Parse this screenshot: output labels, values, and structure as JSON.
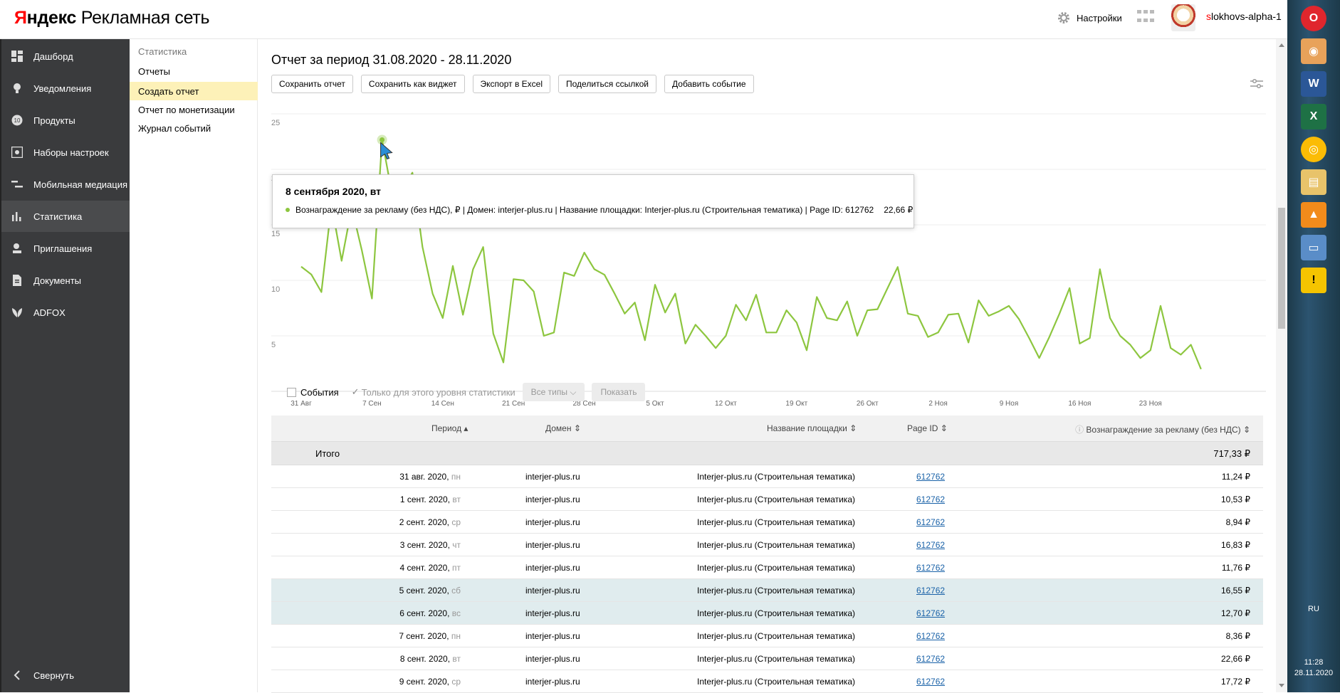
{
  "header": {
    "logo_brand": "Яндекс",
    "logo_product": "Рекламная сеть",
    "settings_label": "Настройки",
    "username_first": "s",
    "username_rest": "lokhovs-alpha-1"
  },
  "sidebar": {
    "items": [
      {
        "label": "Дашборд",
        "icon": "dashboard-icon"
      },
      {
        "label": "Уведомления",
        "icon": "bulb-icon"
      },
      {
        "label": "Продукты",
        "icon": "products-icon"
      },
      {
        "label": "Наборы настроек",
        "icon": "settings-set-icon"
      },
      {
        "label": "Мобильная медиация",
        "icon": "mediation-icon"
      },
      {
        "label": "Статистика",
        "icon": "chart-icon"
      },
      {
        "label": "Приглашения",
        "icon": "invite-icon"
      },
      {
        "label": "Документы",
        "icon": "document-icon"
      },
      {
        "label": "ADFOX",
        "icon": "adfox-icon"
      }
    ],
    "collapse_label": "Свернуть"
  },
  "submenu": {
    "title": "Статистика",
    "items": [
      "Отчеты",
      "Создать отчет",
      "Отчет по монетизации",
      "Журнал событий"
    ]
  },
  "report": {
    "title": "Отчет за период 31.08.2020 - 28.11.2020",
    "buttons": [
      "Сохранить отчет",
      "Сохранить как виджет",
      "Экспорт в Excel",
      "Поделиться ссылкой",
      "Добавить событие"
    ]
  },
  "tooltip": {
    "date": "8 сентября 2020, вт",
    "text": "Вознаграждение за рекламу (без НДС), ₽ | Домен: interjer-plus.ru | Название площадки: Interjer-plus.ru (Строительная тематика) | Page ID: 612762",
    "value": "22,66 ₽"
  },
  "events": {
    "events_label": "События",
    "level_label": "Только для этого уровня статистики",
    "types_label": "Все типы",
    "show_label": "Показать"
  },
  "table": {
    "headers": {
      "period": "Период",
      "domain": "Домен",
      "site": "Название площадки",
      "page_id": "Page ID",
      "reward": "Вознаграждение за рекламу (без НДС)"
    },
    "total_label": "Итого",
    "total_value": "717,33 ₽",
    "rows": [
      {
        "date": "31 авг. 2020,",
        "dow": "пн",
        "domain": "interjer-plus.ru",
        "site": "Interjer-plus.ru (Строительная тематика)",
        "page_id": "612762",
        "value": "11,24 ₽",
        "weekend": false
      },
      {
        "date": "1 сент. 2020,",
        "dow": "вт",
        "domain": "interjer-plus.ru",
        "site": "Interjer-plus.ru (Строительная тематика)",
        "page_id": "612762",
        "value": "10,53 ₽",
        "weekend": false
      },
      {
        "date": "2 сент. 2020,",
        "dow": "ср",
        "domain": "interjer-plus.ru",
        "site": "Interjer-plus.ru (Строительная тематика)",
        "page_id": "612762",
        "value": "8,94 ₽",
        "weekend": false
      },
      {
        "date": "3 сент. 2020,",
        "dow": "чт",
        "domain": "interjer-plus.ru",
        "site": "Interjer-plus.ru (Строительная тематика)",
        "page_id": "612762",
        "value": "16,83 ₽",
        "weekend": false
      },
      {
        "date": "4 сент. 2020,",
        "dow": "пт",
        "domain": "interjer-plus.ru",
        "site": "Interjer-plus.ru (Строительная тематика)",
        "page_id": "612762",
        "value": "11,76 ₽",
        "weekend": false
      },
      {
        "date": "5 сент. 2020,",
        "dow": "сб",
        "domain": "interjer-plus.ru",
        "site": "Interjer-plus.ru (Строительная тематика)",
        "page_id": "612762",
        "value": "16,55 ₽",
        "weekend": true
      },
      {
        "date": "6 сент. 2020,",
        "dow": "вс",
        "domain": "interjer-plus.ru",
        "site": "Interjer-plus.ru (Строительная тематика)",
        "page_id": "612762",
        "value": "12,70 ₽",
        "weekend": true
      },
      {
        "date": "7 сент. 2020,",
        "dow": "пн",
        "domain": "interjer-plus.ru",
        "site": "Interjer-plus.ru (Строительная тематика)",
        "page_id": "612762",
        "value": "8,36 ₽",
        "weekend": false
      },
      {
        "date": "8 сент. 2020,",
        "dow": "вт",
        "domain": "interjer-plus.ru",
        "site": "Interjer-plus.ru (Строительная тематика)",
        "page_id": "612762",
        "value": "22,66 ₽",
        "weekend": false
      },
      {
        "date": "9 сент. 2020,",
        "dow": "ср",
        "domain": "interjer-plus.ru",
        "site": "Interjer-plus.ru (Строительная тематика)",
        "page_id": "612762",
        "value": "17,72 ₽",
        "weekend": false
      }
    ]
  },
  "chart_data": {
    "type": "line",
    "yticks": [
      "5",
      "10",
      "15",
      "20",
      "25"
    ],
    "ylim": [
      0,
      25
    ],
    "xticks": [
      "31 Авг",
      "7 Сен",
      "14 Сен",
      "21 Сен",
      "28 Сен",
      "5 Окт",
      "12 Окт",
      "19 Окт",
      "26 Окт",
      "2 Ноя",
      "9 Ноя",
      "16 Ноя",
      "23 Ноя"
    ],
    "x_start": "2020-08-31",
    "series": [
      {
        "color": "#8dc63f",
        "values": [
          11.24,
          10.53,
          8.94,
          16.83,
          11.76,
          16.55,
          12.7,
          8.36,
          22.66,
          17.72,
          18.0,
          19.7,
          13.0,
          8.8,
          6.6,
          11.3,
          6.9,
          11.0,
          13.0,
          5.2,
          2.6,
          10.1,
          10.0,
          9.0,
          5.0,
          5.3,
          10.7,
          10.4,
          12.5,
          11.0,
          10.5,
          8.8,
          7.0,
          8.0,
          4.6,
          9.6,
          7.1,
          8.8,
          4.3,
          6.0,
          5.0,
          3.9,
          5.0,
          7.8,
          6.4,
          8.7,
          5.3,
          5.3,
          7.3,
          6.2,
          3.7,
          8.5,
          6.6,
          6.4,
          8.1,
          5.0,
          7.3,
          7.4,
          9.3,
          11.2,
          7.0,
          6.8,
          4.9,
          5.3,
          6.9,
          7.0,
          4.4,
          8.2,
          6.8,
          7.2,
          7.7,
          6.5,
          4.8,
          3.0,
          4.9,
          7.0,
          9.3,
          4.3,
          4.8,
          11.0,
          6.6,
          5.0,
          4.2,
          3.0,
          3.7,
          7.7,
          3.9,
          3.3,
          4.2,
          2.0
        ]
      }
    ],
    "highlight_index": 8,
    "grid": true
  },
  "taskbar": {
    "lang": "RU",
    "time": "11:28",
    "date": "28.11.2020"
  },
  "colors": {
    "sidebar_bg": "#3a3b3d",
    "submenu_active": "#fdf1b8",
    "line": "#8dc63f",
    "link": "#1a62a8"
  }
}
